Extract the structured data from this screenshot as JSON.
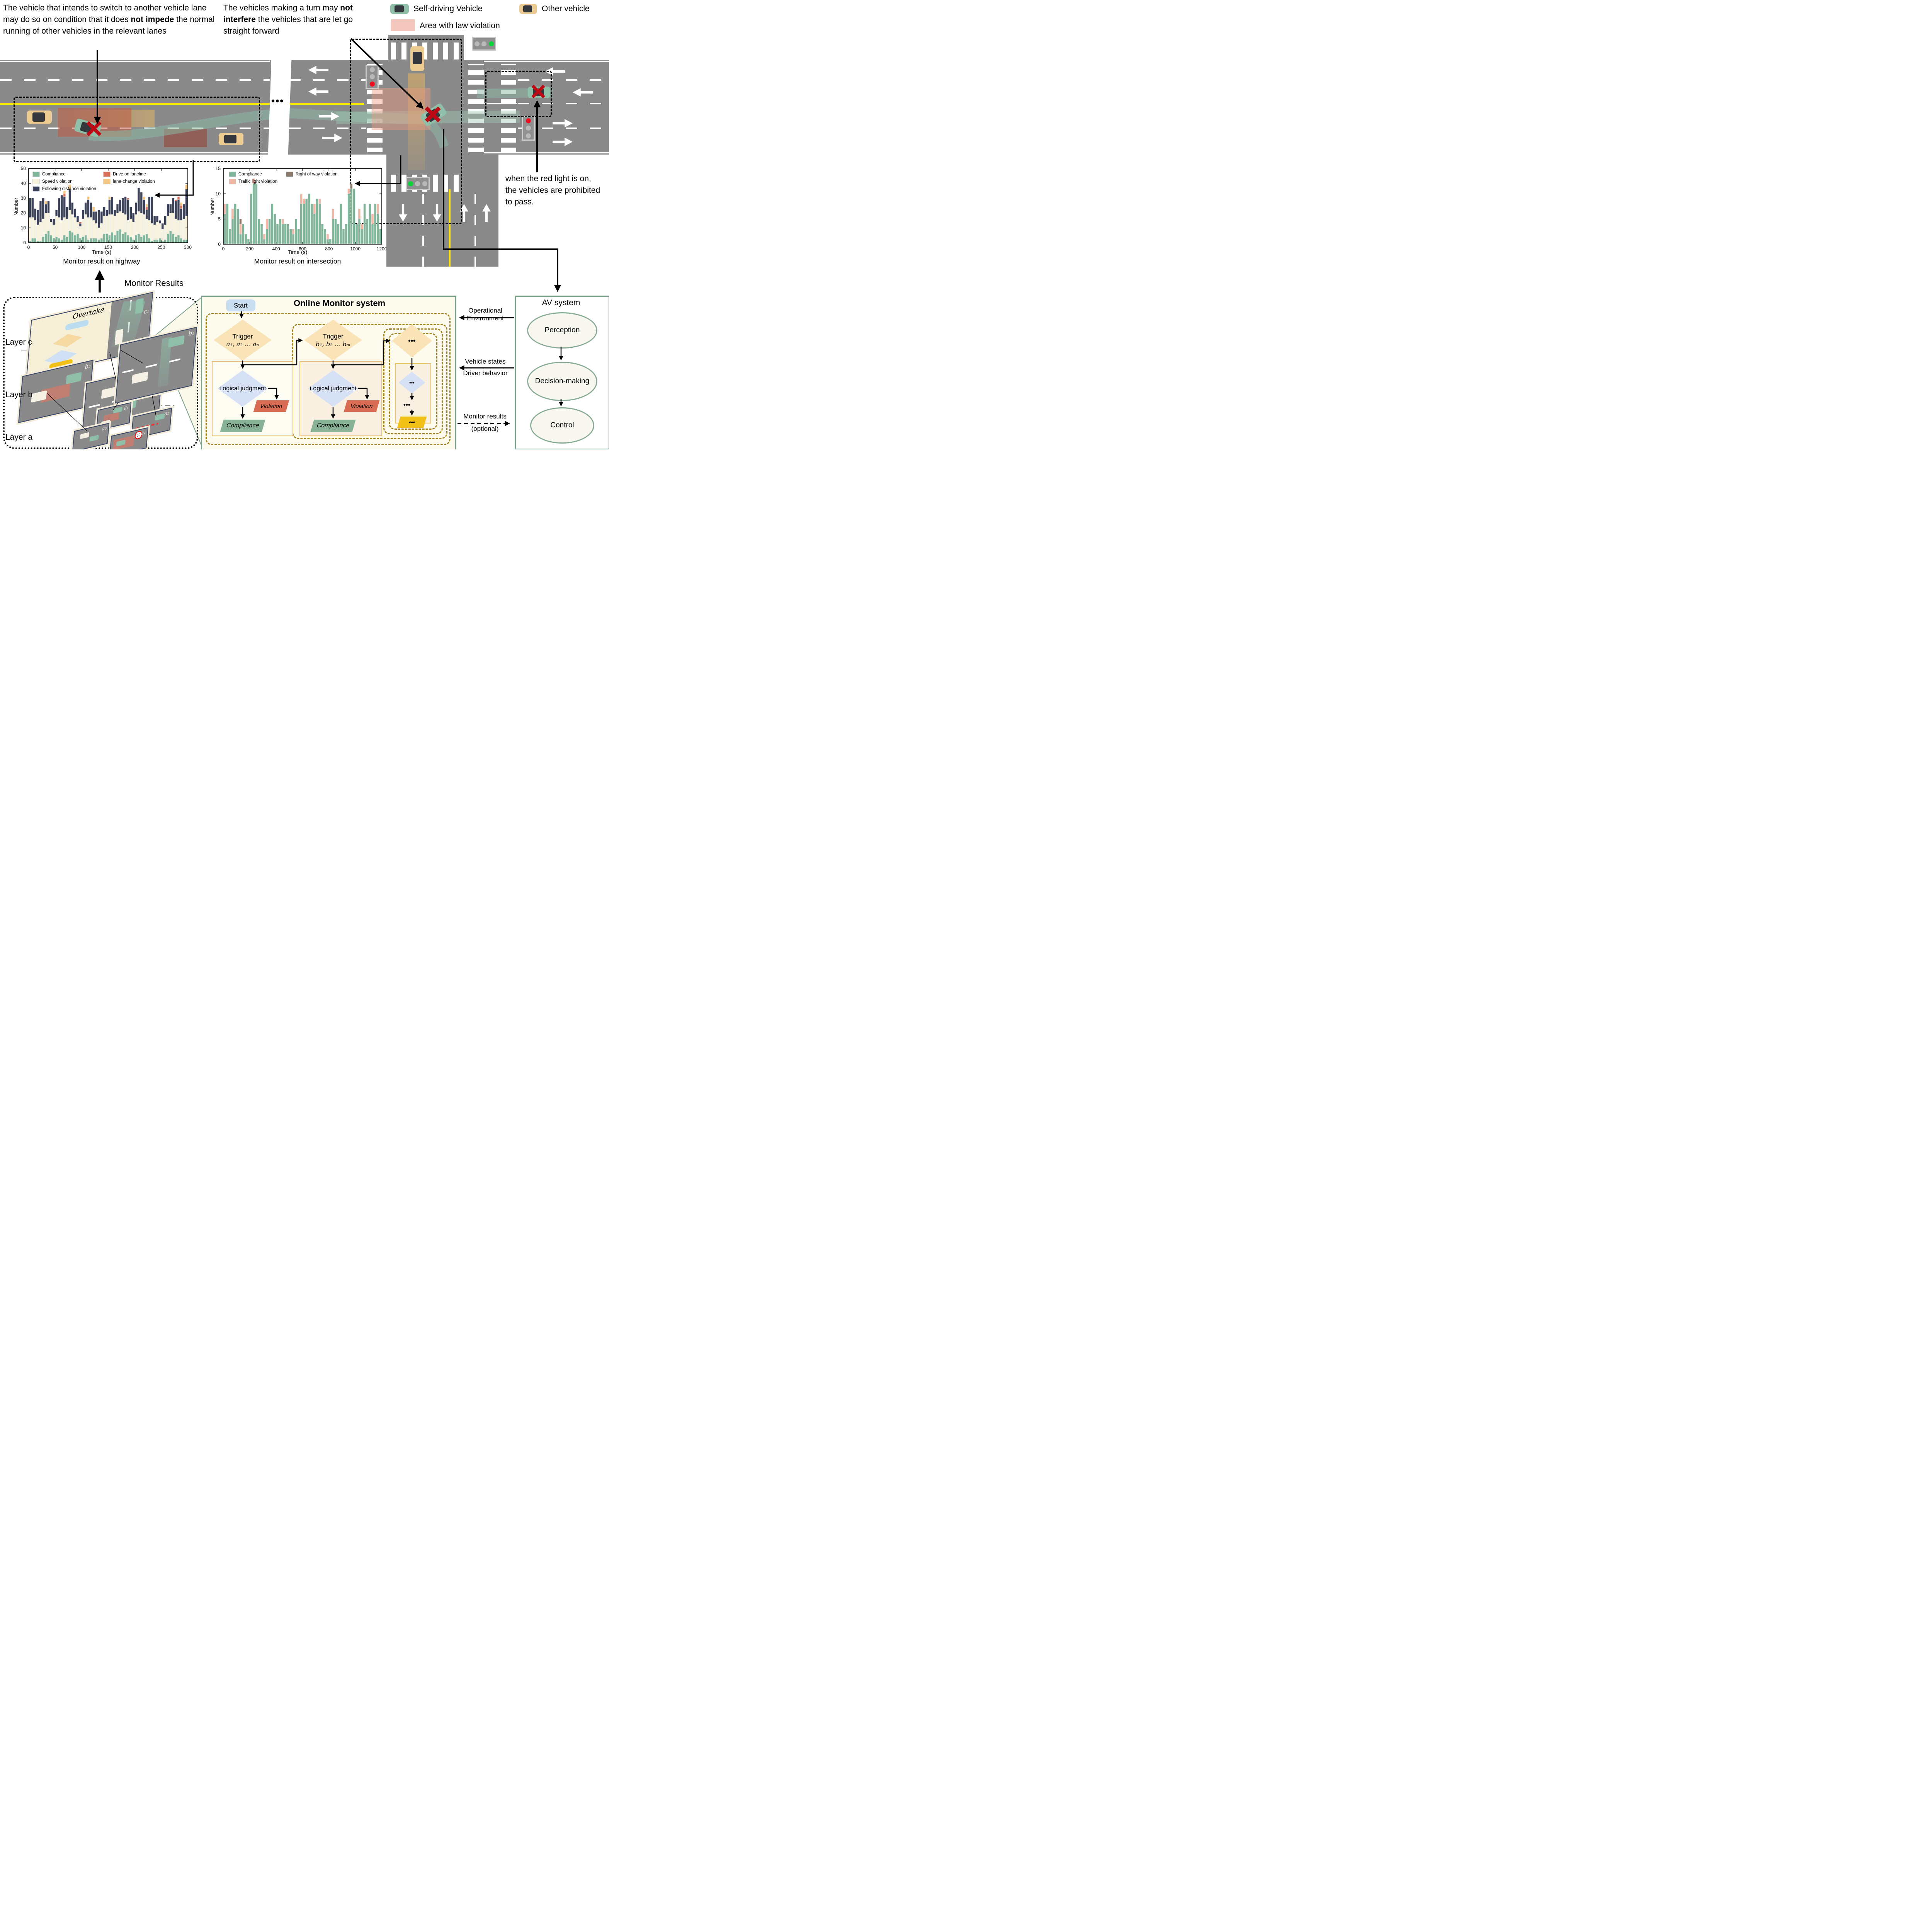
{
  "annotations": {
    "highway_rule_pre": "The vehicle that intends to switch to another vehicle lane may do so on condition that it does ",
    "highway_rule_bold": "not impede",
    "highway_rule_post": " the normal running of other vehicles in the relevant lanes",
    "turn_rule_pre": "The vehicles making a turn may ",
    "turn_rule_bold": "not interfere",
    "turn_rule_post": " the vehicles that are let go straight forward",
    "red_light_rule": "when the red light is on, the vehicles are prohibited to pass.",
    "monitor_results_label": "Monitor Results",
    "road_break_dots": "•••"
  },
  "legend": {
    "self_driving": "Self-driving Vehicle",
    "other_vehicle": "Other vehicle",
    "violation_area": "Area with law violation"
  },
  "chart_data": [
    {
      "type": "bar",
      "stacked": true,
      "title": "Monitor result on highway",
      "xlabel": "Time (s)",
      "ylabel": "Number",
      "xlim": [
        0,
        300
      ],
      "xtick": 50,
      "ylim": [
        0,
        50
      ],
      "ytick": 10,
      "bar_interval_s": 5,
      "x": [
        2.5,
        7.5,
        12.5,
        17.5,
        22.5,
        27.5,
        32.5,
        37.5,
        42.5,
        47.5,
        52.5,
        57.5,
        62.5,
        67.5,
        72.5,
        77.5,
        82.5,
        87.5,
        92.5,
        97.5,
        102.5,
        107.5,
        112.5,
        117.5,
        122.5,
        127.5,
        132.5,
        137.5,
        142.5,
        147.5,
        152.5,
        157.5,
        162.5,
        167.5,
        172.5,
        177.5,
        182.5,
        187.5,
        192.5,
        197.5,
        202.5,
        207.5,
        212.5,
        217.5,
        222.5,
        227.5,
        232.5,
        237.5,
        242.5,
        247.5,
        252.5,
        257.5,
        262.5,
        267.5,
        272.5,
        277.5,
        282.5,
        287.5,
        292.5,
        297.5
      ],
      "series": [
        {
          "name": "Compliance",
          "color": "#7fb69a",
          "values": [
            1,
            3,
            3,
            1,
            1,
            4,
            6,
            8,
            5,
            3,
            4,
            3,
            2,
            5,
            4,
            8,
            7,
            5,
            6,
            3,
            4,
            5,
            2,
            3,
            3,
            3,
            2,
            3,
            6,
            6,
            5,
            7,
            5,
            8,
            9,
            6,
            7,
            5,
            4,
            2,
            5,
            6,
            4,
            5,
            6,
            3,
            1,
            2,
            2,
            3,
            1,
            2,
            6,
            8,
            6,
            4,
            5,
            3,
            2,
            2
          ]
        },
        {
          "name": "Speed violation",
          "color": "#f8f3dd",
          "values": [
            16,
            14,
            12,
            11,
            13,
            12,
            14,
            12,
            9,
            9,
            14,
            14,
            13,
            12,
            12,
            14,
            12,
            12,
            8,
            8,
            12,
            14,
            15,
            14,
            12,
            10,
            8,
            10,
            12,
            12,
            14,
            12,
            13,
            12,
            12,
            14,
            12,
            10,
            12,
            12,
            14,
            15,
            16,
            14,
            10,
            12,
            12,
            10,
            12,
            10,
            8,
            10,
            12,
            12,
            14,
            12,
            10,
            12,
            14,
            16
          ]
        },
        {
          "name": "Following distance violation",
          "color": "#3b4059",
          "values": [
            13,
            13,
            8,
            10,
            14,
            14,
            6,
            8,
            2,
            4,
            4,
            13,
            17,
            14,
            8,
            14,
            8,
            6,
            4,
            2,
            6,
            8,
            12,
            10,
            6,
            8,
            12,
            8,
            6,
            4,
            10,
            12,
            4,
            6,
            8,
            10,
            12,
            14,
            8,
            6,
            8,
            16,
            14,
            10,
            6,
            16,
            18,
            6,
            4,
            2,
            4,
            6,
            8,
            6,
            10,
            12,
            14,
            8,
            10,
            18
          ]
        },
        {
          "name": "Drive on laneline",
          "color": "#d9705a",
          "values": [
            0,
            0,
            0,
            0,
            0,
            0,
            0,
            0,
            0,
            0,
            0,
            0,
            0,
            2,
            0,
            0,
            0,
            0,
            0,
            1,
            0,
            0,
            0,
            0,
            0,
            0,
            0,
            0,
            0,
            0,
            0,
            0,
            0,
            0,
            0,
            0,
            0,
            1,
            0,
            0,
            0,
            0,
            0,
            0,
            2,
            0,
            0,
            0,
            0,
            0,
            0,
            0,
            0,
            0,
            0,
            1,
            2,
            2,
            0,
            0
          ]
        },
        {
          "name": "lane-change violation",
          "color": "#f3c781",
          "values": [
            0,
            0,
            0,
            0,
            0,
            0,
            2,
            0,
            0,
            0,
            0,
            0,
            0,
            2,
            0,
            3,
            0,
            0,
            0,
            0,
            0,
            0,
            2,
            0,
            3,
            0,
            0,
            0,
            0,
            0,
            2,
            0,
            0,
            0,
            0,
            0,
            0,
            0,
            0,
            0,
            0,
            0,
            0,
            2,
            2,
            0,
            0,
            0,
            0,
            0,
            0,
            0,
            0,
            0,
            0,
            0,
            0,
            2,
            0,
            3
          ]
        }
      ]
    },
    {
      "type": "bar",
      "stacked": true,
      "title": "Monitor result on intersection",
      "xlabel": "Time (s)",
      "ylabel": "Number",
      "xlim": [
        0,
        1200
      ],
      "xtick": 200,
      "ylim": [
        0,
        15
      ],
      "ytick": 5,
      "bar_interval_s": 20,
      "x": [
        10,
        30,
        50,
        70,
        90,
        110,
        130,
        150,
        170,
        190,
        210,
        230,
        250,
        270,
        290,
        310,
        330,
        350,
        370,
        390,
        410,
        430,
        450,
        470,
        490,
        510,
        530,
        550,
        570,
        590,
        610,
        630,
        650,
        670,
        690,
        710,
        730,
        750,
        770,
        790,
        810,
        830,
        850,
        870,
        890,
        910,
        930,
        950,
        970,
        990,
        1010,
        1030,
        1050,
        1070,
        1090,
        1110,
        1130,
        1150,
        1170,
        1190
      ],
      "series": [
        {
          "name": "Compliance",
          "color": "#7fb69a",
          "values": [
            6,
            8,
            3,
            5,
            8,
            7,
            2,
            4,
            2,
            1,
            10,
            12,
            12,
            5,
            4,
            1,
            3,
            5,
            8,
            6,
            4,
            5,
            4,
            4,
            4,
            3,
            2,
            5,
            3,
            8,
            8,
            9,
            10,
            8,
            6,
            9,
            8,
            4,
            3,
            1,
            1,
            5,
            5,
            4,
            8,
            3,
            4,
            10,
            11,
            11,
            4,
            5,
            3,
            8,
            5,
            8,
            4,
            8,
            6,
            3
          ]
        },
        {
          "name": "Traffic light violation",
          "color": "#efb7a4",
          "values": [
            2,
            0,
            0,
            2,
            0,
            0,
            2,
            0,
            0,
            0,
            0,
            1,
            0,
            0,
            0,
            1,
            2,
            0,
            0,
            0,
            0,
            0,
            1,
            0,
            0,
            0,
            1,
            0,
            0,
            2,
            1,
            0,
            0,
            0,
            2,
            0,
            1,
            0,
            0,
            1,
            0,
            2,
            0,
            0,
            0,
            0,
            0,
            1,
            0,
            0,
            0,
            2,
            1,
            0,
            0,
            0,
            2,
            0,
            2,
            0
          ]
        },
        {
          "name": "Right of way violation",
          "color": "#8b7b6d",
          "values": [
            0,
            0,
            0,
            0,
            0,
            0,
            1,
            0,
            0,
            0,
            0,
            0,
            0,
            0,
            0,
            0,
            0,
            0,
            0,
            0,
            0,
            0,
            0,
            0,
            0,
            0,
            0,
            0,
            0,
            0,
            0,
            0,
            0,
            0,
            0,
            0,
            0,
            0,
            0,
            0,
            0,
            0,
            0,
            0,
            0,
            0,
            0,
            0,
            1,
            0,
            0,
            0,
            0,
            0,
            0,
            0,
            0,
            0,
            0,
            0
          ]
        }
      ]
    }
  ],
  "layers": {
    "layer_c": "Layer c",
    "layer_b": "Layer b",
    "layer_a": "Layer a",
    "overtake": "Overtake",
    "c1": "c₁",
    "b1": "b₁",
    "b2": "b₂",
    "b3": "b₃",
    "a1": "a₁",
    "a2": "a₂",
    "a3": "a₃",
    "a4": "a₄",
    "speed_sign": "60"
  },
  "monitor_system": {
    "title": "Online Monitor system",
    "start": "Start",
    "trigger_label": "Trigger",
    "trigger_a_vars": "a₁, a₂ … aₙ",
    "trigger_b_vars": "b₁, b₂ … bₘ",
    "dots": "•••",
    "logical_judgment": "Logical judgment",
    "violation": "Violation",
    "compliance": "Compliance"
  },
  "av_system": {
    "title": "AV system",
    "perception": "Perception",
    "decision_making": "Decision-making",
    "control": "Control"
  },
  "io_labels": {
    "operational_1": "Operational",
    "operational_2": "Environment",
    "vehicle_states": "Vehicle states",
    "driver_behavior": "Driver behavior",
    "monitor_results": "Monitor results",
    "optional": "(optional)"
  },
  "colors": {
    "road": "#8a8a8a",
    "yellow-line": "#ffe600",
    "car-green": "#8fbfa8",
    "car-yellow": "#eccb92",
    "violation-swatch": "#f3c7bd",
    "monitor-bg": "#fcfbee",
    "monitor-border": "#7ea08c",
    "gold-dash": "#a2821d",
    "trigger-fill": "#fae3b6",
    "judgment-fill": "#d6e1f6",
    "start-fill": "#c9def1",
    "violation-fill": "#d96c52",
    "compliance-fill": "#87b295",
    "dots-fill": "#f2c117",
    "layer-border": "#3a4668",
    "layer-bg": "#f6efd8",
    "redx": "#bd0a14"
  }
}
